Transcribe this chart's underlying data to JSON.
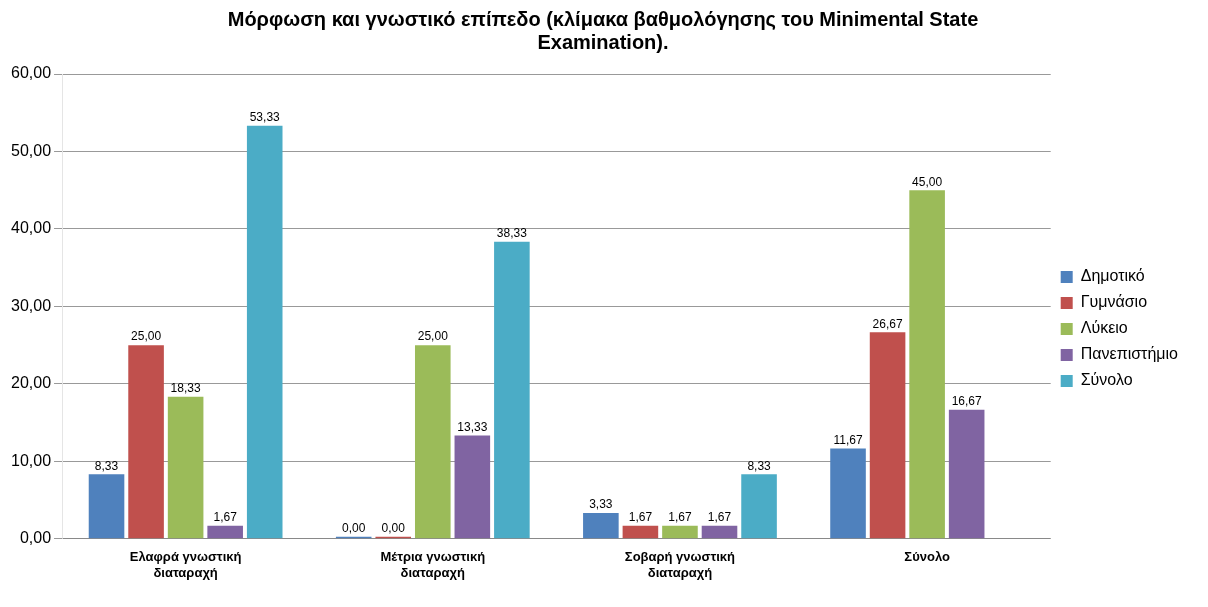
{
  "chart_data": {
    "type": "bar",
    "title": "Μόρφωση και γνωστικό επίπεδο (κλίμακα βαθμολόγησης του Minimental State Examination).",
    "categories": [
      "Ελαφρά γνωστική διαταραχή",
      "Μέτρια γνωστική διαταραχή",
      "Σοβαρή γνωστική διαταραχή",
      "Σύνολο"
    ],
    "series": [
      {
        "name": "Δημοτικό",
        "color": "#4f81bd",
        "values": [
          8.33,
          0,
          3.33,
          11.67
        ],
        "value_labels": [
          "8,33",
          "0,00",
          "3,33",
          "11,67"
        ]
      },
      {
        "name": "Γυμνάσιο",
        "color": "#c0504d",
        "values": [
          25,
          0,
          1.67,
          26.67
        ],
        "value_labels": [
          "25,00",
          "0,00",
          "1,67",
          "26,67"
        ]
      },
      {
        "name": "Λύκειο",
        "color": "#9bbb59",
        "values": [
          18.33,
          25,
          1.67,
          45
        ],
        "value_labels": [
          "18,33",
          "25,00",
          "1,67",
          "45,00"
        ]
      },
      {
        "name": "Πανεπιστήμιο",
        "color": "#8064a2",
        "values": [
          1.67,
          13.33,
          1.67,
          16.67
        ],
        "value_labels": [
          "1,67",
          "13,33",
          "1,67",
          "16,67"
        ]
      },
      {
        "name": "Σύνολο",
        "color": "#4bacc6",
        "values": [
          53.33,
          38.33,
          8.33,
          null
        ],
        "value_labels": [
          "53,33",
          "38,33",
          "8,33",
          null
        ]
      }
    ],
    "ylim": [
      0,
      60
    ],
    "yticks": [
      {
        "value": 0,
        "label": "0,00"
      },
      {
        "value": 10,
        "label": "10,00"
      },
      {
        "value": 20,
        "label": "20,00"
      },
      {
        "value": 30,
        "label": "30,00"
      },
      {
        "value": 40,
        "label": "40,00"
      },
      {
        "value": 50,
        "label": "50,00"
      },
      {
        "value": 60,
        "label": "60,00"
      }
    ],
    "grid": "y",
    "legend": "right"
  }
}
